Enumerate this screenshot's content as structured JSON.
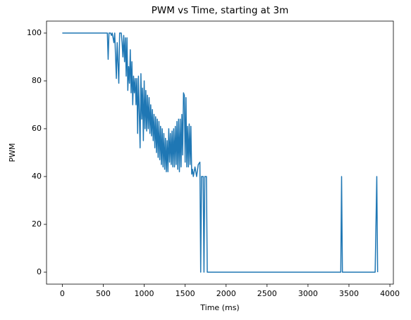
{
  "chart_data": {
    "type": "line",
    "title": "PWM vs Time, starting at 3m",
    "xlabel": "Time (ms)",
    "ylabel": "PWM",
    "color": "#1f77b4",
    "x": [
      0,
      550,
      560,
      570,
      590,
      600,
      610,
      630,
      640,
      660,
      670,
      690,
      700,
      720,
      730,
      740,
      750,
      760,
      770,
      780,
      790,
      800,
      810,
      820,
      830,
      840,
      850,
      860,
      870,
      880,
      890,
      900,
      910,
      920,
      930,
      950,
      960,
      970,
      980,
      990,
      1000,
      1010,
      1020,
      1030,
      1040,
      1050,
      1060,
      1070,
      1080,
      1090,
      1100,
      1110,
      1120,
      1130,
      1140,
      1150,
      1160,
      1170,
      1180,
      1190,
      1200,
      1210,
      1220,
      1230,
      1240,
      1250,
      1260,
      1270,
      1280,
      1290,
      1300,
      1310,
      1320,
      1330,
      1340,
      1350,
      1360,
      1370,
      1380,
      1390,
      1400,
      1410,
      1420,
      1430,
      1440,
      1450,
      1460,
      1470,
      1480,
      1490,
      1500,
      1510,
      1520,
      1530,
      1540,
      1550,
      1560,
      1570,
      1580,
      1590,
      1600,
      1620,
      1640,
      1660,
      1680,
      1690,
      1700,
      1720,
      1730,
      1740,
      1760,
      1770,
      1780,
      3400,
      3410,
      3420,
      3820,
      3840,
      3850
    ],
    "values": [
      100,
      100,
      89,
      100,
      100,
      99,
      100,
      96,
      100,
      81,
      96,
      79,
      100,
      100,
      96,
      90,
      99,
      88,
      98,
      82,
      98,
      76,
      86,
      79,
      93,
      75,
      88,
      70,
      82,
      75,
      81,
      70,
      81,
      58,
      82,
      52,
      83,
      64,
      77,
      55,
      80,
      60,
      76,
      59,
      74,
      60,
      73,
      58,
      70,
      57,
      68,
      55,
      66,
      52,
      65,
      50,
      64,
      48,
      63,
      47,
      61,
      45,
      60,
      44,
      58,
      43,
      56,
      42,
      55,
      42,
      60,
      46,
      58,
      45,
      59,
      44,
      60,
      44,
      61,
      45,
      63,
      43,
      64,
      42,
      64,
      44,
      66,
      49,
      75,
      74,
      46,
      73,
      44,
      61,
      44,
      62,
      45,
      61,
      41,
      43,
      40,
      44,
      40,
      45,
      46,
      0,
      40,
      40,
      0,
      40,
      40,
      0,
      0,
      0,
      40,
      0,
      0,
      40,
      0
    ],
    "xlim": [
      -192.5,
      4042.5
    ],
    "ylim": [
      -5,
      105
    ],
    "xticks": [
      0,
      500,
      1000,
      1500,
      2000,
      2500,
      3000,
      3500,
      4000
    ],
    "yticks": [
      0,
      20,
      40,
      60,
      80,
      100
    ]
  }
}
